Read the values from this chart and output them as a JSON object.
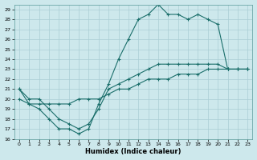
{
  "xlabel": "Humidex (Indice chaleur)",
  "background_color": "#cde8ec",
  "grid_color": "#aacdd4",
  "line_color": "#1a6e6a",
  "xlim": [
    -0.5,
    23.5
  ],
  "ylim": [
    16,
    29.5
  ],
  "xtick_vals": [
    0,
    1,
    2,
    3,
    4,
    5,
    6,
    7,
    8,
    9,
    10,
    11,
    12,
    13,
    14,
    15,
    16,
    17,
    18,
    19,
    20,
    21,
    22,
    23
  ],
  "ytick_vals": [
    16,
    17,
    18,
    19,
    20,
    21,
    22,
    23,
    24,
    25,
    26,
    27,
    28,
    29
  ],
  "series": [
    {
      "x": [
        0,
        1,
        2,
        3,
        4,
        5,
        6,
        7,
        8,
        9,
        10,
        11,
        12,
        13,
        14,
        15,
        16,
        17,
        18,
        19,
        20,
        21,
        22,
        23
      ],
      "y": [
        21,
        19.5,
        19,
        18,
        17,
        17,
        16.5,
        17,
        19.5,
        21.5,
        24,
        26,
        28,
        28.5,
        29.5,
        28.5,
        28.5,
        28,
        28.5,
        28,
        27.5,
        23,
        23,
        23
      ]
    },
    {
      "x": [
        0,
        1,
        2,
        3,
        4,
        5,
        6,
        7,
        8,
        9,
        10,
        11,
        12,
        13,
        14,
        15,
        16,
        17,
        18,
        19,
        20,
        21,
        22,
        23
      ],
      "y": [
        21,
        20,
        20,
        19,
        18,
        17.5,
        17,
        17.5,
        19,
        21,
        21.5,
        22,
        22.5,
        23,
        23.5,
        23.5,
        23.5,
        23.5,
        23.5,
        23.5,
        23.5,
        23,
        23,
        23
      ]
    },
    {
      "x": [
        0,
        1,
        2,
        3,
        4,
        5,
        6,
        7,
        8,
        9,
        10,
        11,
        12,
        13,
        14,
        15,
        16,
        17,
        18,
        19,
        20,
        21,
        22,
        23
      ],
      "y": [
        20,
        19.5,
        19.5,
        19.5,
        19.5,
        19.5,
        20,
        20,
        20,
        20.5,
        21,
        21,
        21.5,
        22,
        22,
        22,
        22.5,
        22.5,
        22.5,
        23,
        23,
        23,
        23,
        23
      ]
    }
  ]
}
